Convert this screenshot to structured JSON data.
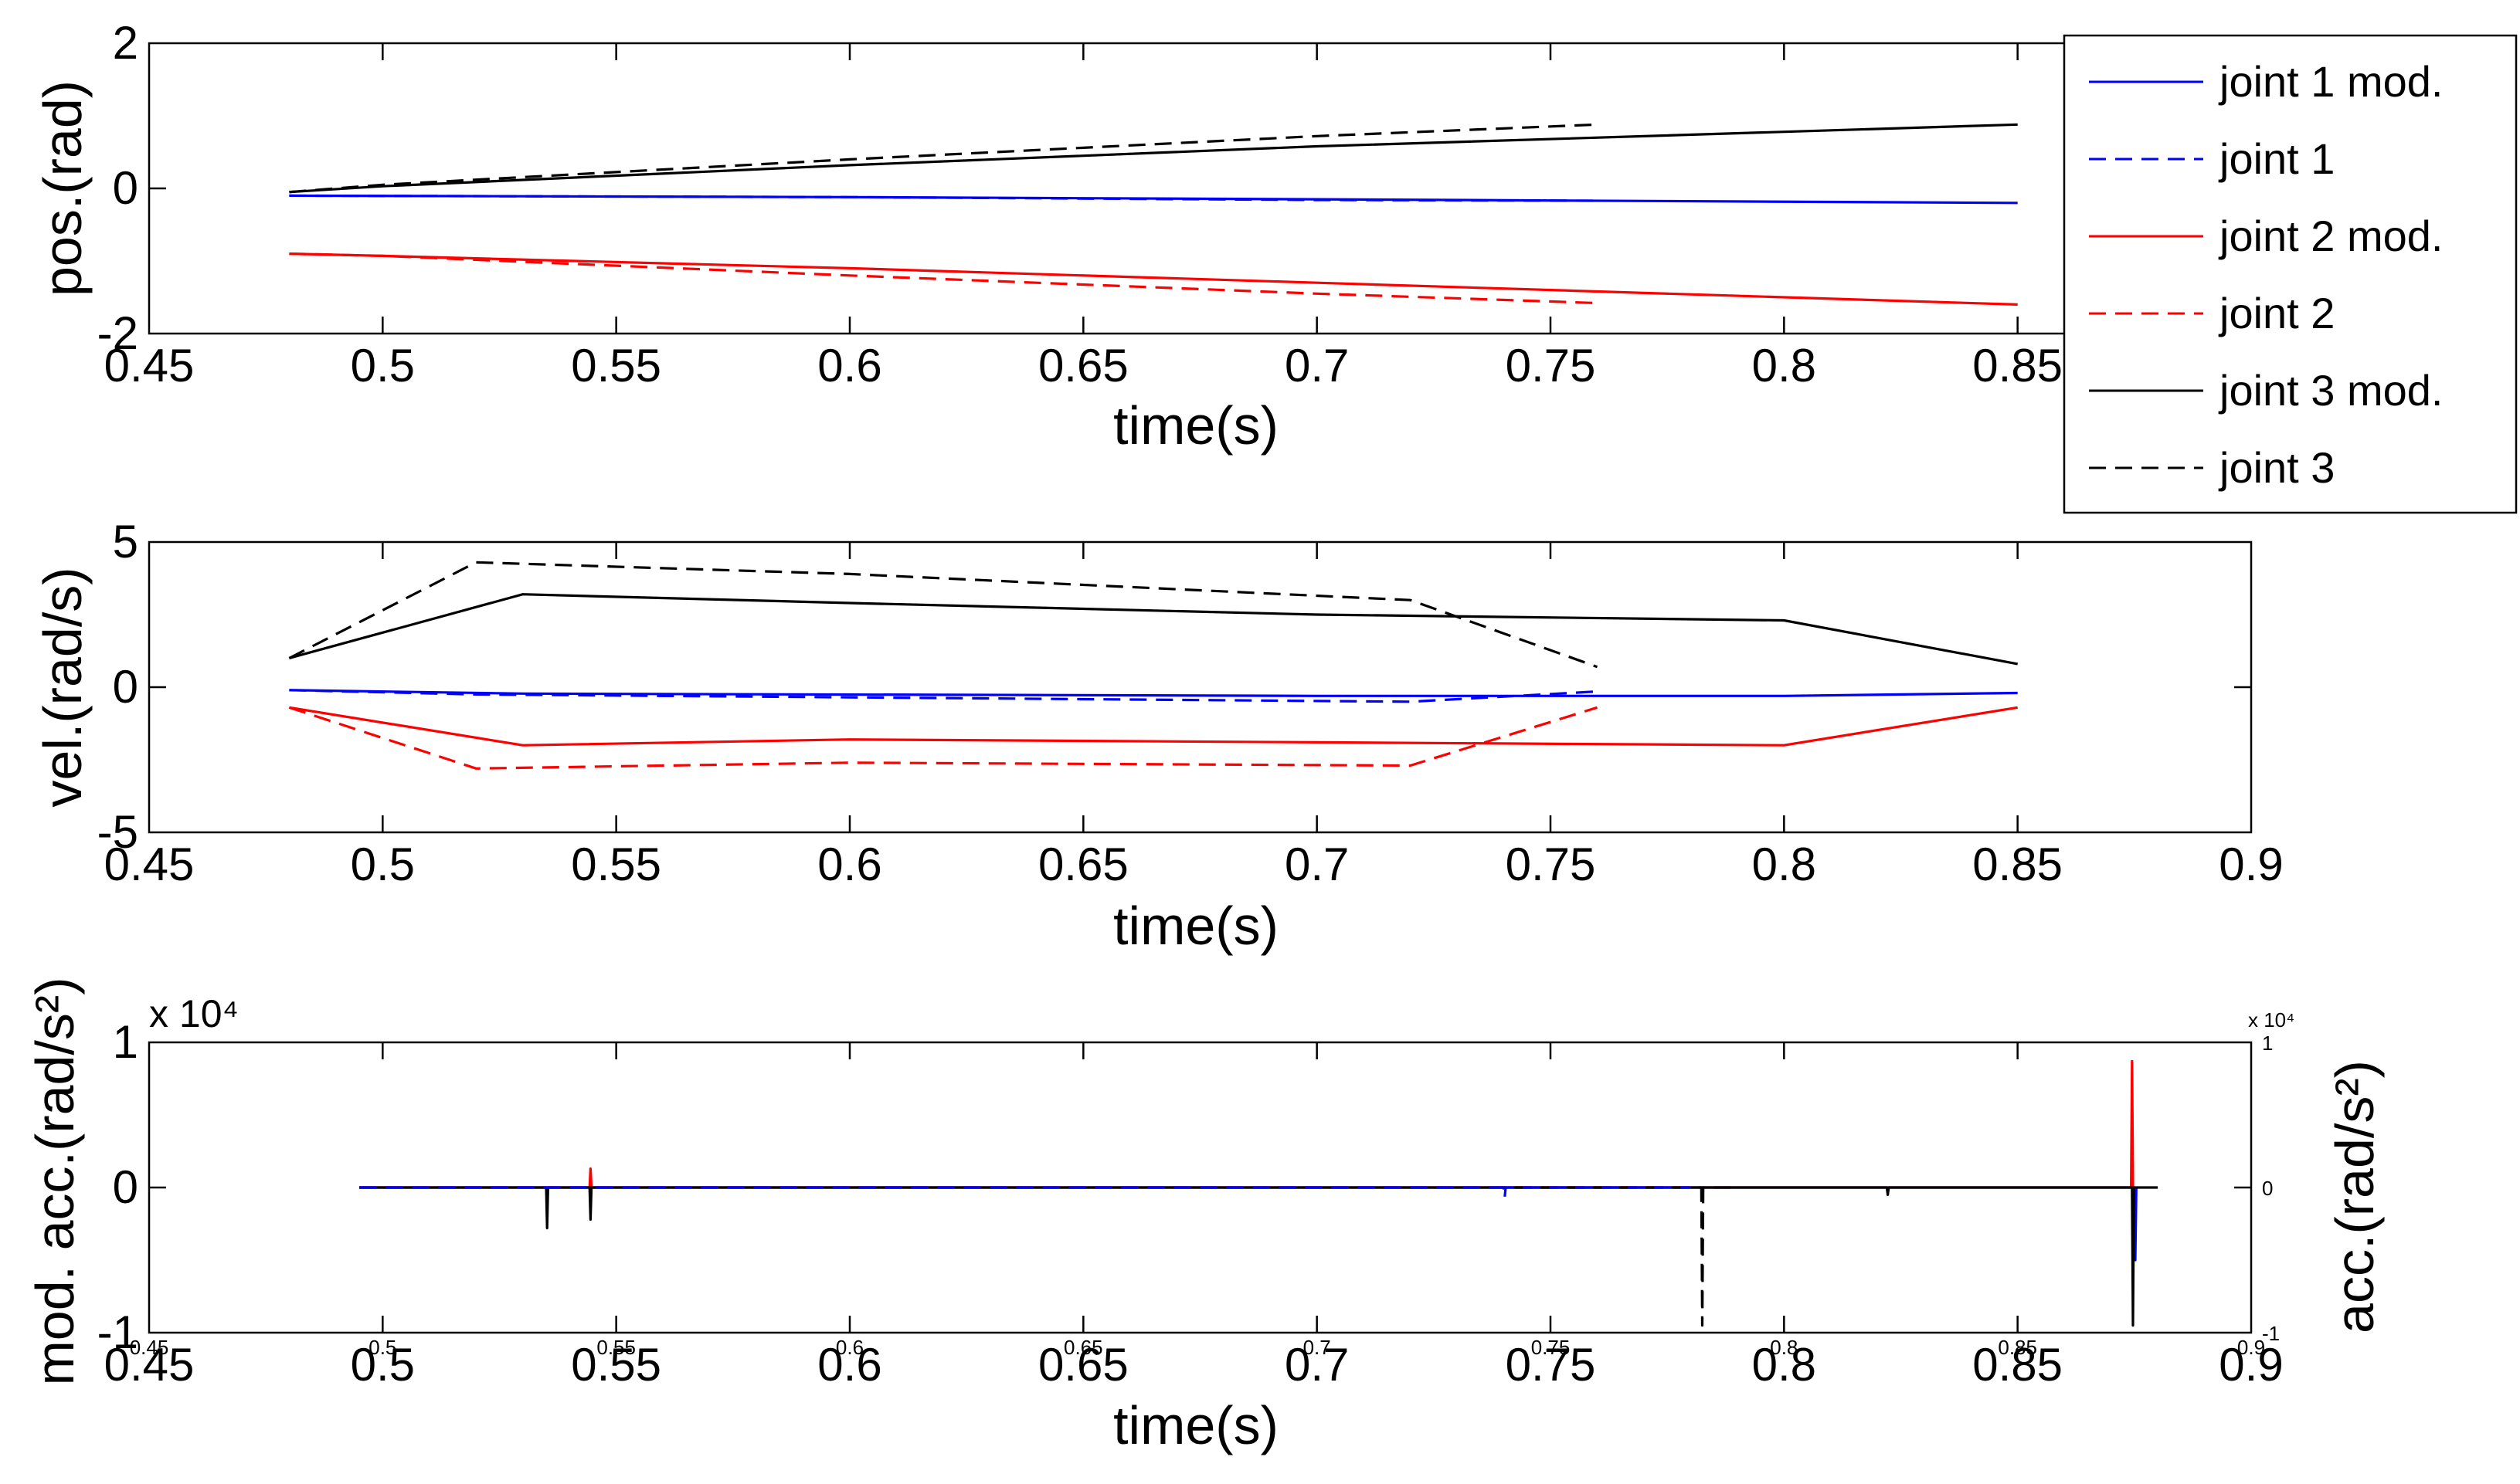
{
  "chart_data": [
    {
      "type": "line",
      "id": "position",
      "xlabel": "time(s)",
      "ylabel": "pos.(rad)",
      "xlim": [
        0.45,
        0.87
      ],
      "ylim": [
        -2,
        2
      ],
      "xticks": [
        0.45,
        0.5,
        0.55,
        0.6,
        0.65,
        0.7,
        0.75,
        0.8,
        0.85
      ],
      "xticklabels": [
        "0.45",
        "0.5",
        "0.55",
        "0.6",
        "0.65",
        "0.7",
        "0.75",
        "0.8",
        "0.85"
      ],
      "yticks": [
        -2,
        0,
        2
      ],
      "yticklabels": [
        "-2",
        "0",
        "2"
      ],
      "series": [
        {
          "name": "joint 1 mod.",
          "color": "#0000ff",
          "dash": false,
          "x": [
            0.48,
            0.6,
            0.7,
            0.85
          ],
          "y": [
            -0.1,
            -0.12,
            -0.15,
            -0.2
          ]
        },
        {
          "name": "joint 1",
          "color": "#0000ff",
          "dash": true,
          "x": [
            0.48,
            0.6,
            0.7,
            0.76
          ],
          "y": [
            -0.1,
            -0.12,
            -0.16,
            -0.17
          ]
        },
        {
          "name": "joint 2 mod.",
          "color": "#ff0000",
          "dash": false,
          "x": [
            0.48,
            0.5,
            0.6,
            0.7,
            0.85
          ],
          "y": [
            -0.9,
            -0.93,
            -1.1,
            -1.3,
            -1.6
          ]
        },
        {
          "name": "joint 2",
          "color": "#ff0000",
          "dash": true,
          "x": [
            0.48,
            0.5,
            0.6,
            0.7,
            0.76
          ],
          "y": [
            -0.9,
            -0.93,
            -1.2,
            -1.45,
            -1.58
          ]
        },
        {
          "name": "joint 3 mod.",
          "color": "#000000",
          "dash": false,
          "x": [
            0.48,
            0.5,
            0.6,
            0.7,
            0.85
          ],
          "y": [
            -0.05,
            0.03,
            0.32,
            0.58,
            0.88
          ]
        },
        {
          "name": "joint 3",
          "color": "#000000",
          "dash": true,
          "x": [
            0.48,
            0.5,
            0.6,
            0.7,
            0.76
          ],
          "y": [
            -0.05,
            0.05,
            0.4,
            0.72,
            0.88
          ]
        }
      ],
      "legend": {
        "placement": "right-outside",
        "entries": [
          "joint 1 mod.",
          "joint 1",
          "joint 2 mod.",
          "joint 2",
          "joint 3 mod.",
          "joint 3"
        ]
      }
    },
    {
      "type": "line",
      "id": "velocity",
      "xlabel": "time(s)",
      "ylabel": "vel.(rad/s)",
      "xlim": [
        0.45,
        0.9
      ],
      "ylim": [
        -5,
        5
      ],
      "xticks": [
        0.45,
        0.5,
        0.55,
        0.6,
        0.65,
        0.7,
        0.75,
        0.8,
        0.85,
        0.9
      ],
      "xticklabels": [
        "0.45",
        "0.5",
        "0.55",
        "0.6",
        "0.65",
        "0.7",
        "0.75",
        "0.8",
        "0.85",
        "0.9"
      ],
      "yticks": [
        -5,
        0,
        5
      ],
      "yticklabels": [
        "-5",
        "0",
        "5"
      ],
      "series": [
        {
          "name": "joint 1 mod.",
          "color": "#0000ff",
          "dash": false,
          "x": [
            0.48,
            0.53,
            0.7,
            0.8,
            0.85
          ],
          "y": [
            -0.1,
            -0.22,
            -0.3,
            -0.3,
            -0.2
          ]
        },
        {
          "name": "joint 1",
          "color": "#0000ff",
          "dash": true,
          "x": [
            0.48,
            0.52,
            0.72,
            0.76
          ],
          "y": [
            -0.1,
            -0.25,
            -0.5,
            -0.15
          ]
        },
        {
          "name": "joint 2 mod.",
          "color": "#ff0000",
          "dash": false,
          "x": [
            0.48,
            0.53,
            0.6,
            0.7,
            0.8,
            0.85
          ],
          "y": [
            -0.7,
            -2.0,
            -1.8,
            -1.9,
            -2.0,
            -0.7
          ]
        },
        {
          "name": "joint 2",
          "color": "#ff0000",
          "dash": true,
          "x": [
            0.48,
            0.52,
            0.6,
            0.72,
            0.76
          ],
          "y": [
            -0.7,
            -2.8,
            -2.6,
            -2.7,
            -0.7
          ]
        },
        {
          "name": "joint 3 mod.",
          "color": "#000000",
          "dash": false,
          "x": [
            0.48,
            0.53,
            0.6,
            0.7,
            0.8,
            0.85
          ],
          "y": [
            1.0,
            3.2,
            2.9,
            2.5,
            2.3,
            0.8
          ]
        },
        {
          "name": "joint 3",
          "color": "#000000",
          "dash": true,
          "x": [
            0.48,
            0.52,
            0.6,
            0.72,
            0.76
          ],
          "y": [
            1.0,
            4.3,
            3.9,
            3.0,
            0.7
          ]
        }
      ]
    },
    {
      "type": "line",
      "id": "acceleration",
      "xlabel": "time(s)",
      "ylabel": "mod. acc.(rad/s²)",
      "ylabel_right": "acc.(rad/s²)",
      "multiplier_left": "x 10⁴",
      "multiplier_right": "x 10⁴",
      "xlim": [
        0.45,
        0.9
      ],
      "ylim": [
        -1,
        1
      ],
      "ylim_right": [
        -1,
        1
      ],
      "xticks": [
        0.45,
        0.5,
        0.55,
        0.6,
        0.65,
        0.7,
        0.75,
        0.8,
        0.85,
        0.9
      ],
      "xticklabels": [
        "0.45",
        "0.5",
        "0.55",
        "0.6",
        "0.65",
        "0.7",
        "0.75",
        "0.8",
        "0.85",
        "0.9"
      ],
      "xticklabels_right_axis": [
        "0.45",
        "0.5",
        "0.55",
        "0.6",
        "0.65",
        "0.7",
        "0.75",
        "0.8",
        "0.85",
        "0.9"
      ],
      "yticks": [
        -1,
        0,
        1
      ],
      "yticklabels": [
        "-1",
        "0",
        "1"
      ],
      "yticklabels_right": [
        "-1",
        "0",
        "1"
      ],
      "series": [
        {
          "name": "joint 1 mod.",
          "color": "#0000ff",
          "dash": false,
          "x": [
            0.495,
            0.535,
            0.5352,
            0.5354,
            0.875,
            0.8752,
            0.8754
          ],
          "y": [
            0,
            0,
            -0.05,
            0,
            0,
            -0.5,
            0
          ]
        },
        {
          "name": "joint 2 mod.",
          "color": "#ff0000",
          "dash": false,
          "x": [
            0.495,
            0.5443,
            0.5445,
            0.5447,
            0.8743,
            0.8745,
            0.8747
          ],
          "y": [
            0,
            0,
            0.13,
            0,
            0,
            0.87,
            0
          ]
        },
        {
          "name": "joint 3 mod.",
          "color": "#000000",
          "dash": false,
          "x": [
            0.495,
            0.535,
            0.5352,
            0.5354,
            0.5443,
            0.5445,
            0.5447,
            0.822,
            0.8222,
            0.8224,
            0.8745,
            0.8747,
            0.8749,
            0.88
          ],
          "y": [
            0,
            0,
            -0.28,
            0,
            0,
            -0.22,
            0,
            0,
            -0.05,
            0,
            0,
            -0.95,
            0,
            0
          ]
        },
        {
          "name": "joint 2",
          "color": "#ff0000",
          "dash": true,
          "x": [
            0.495,
            0.78
          ],
          "y": [
            0,
            0
          ]
        },
        {
          "name": "joint 3",
          "color": "#000000",
          "dash": true,
          "x": [
            0.495,
            0.7823,
            0.7825,
            0.7827,
            0.79
          ],
          "y": [
            0,
            0,
            -0.95,
            0,
            0
          ]
        },
        {
          "name": "joint 1",
          "color": "#0000ff",
          "dash": true,
          "x": [
            0.495,
            0.74,
            0.7402,
            0.7404,
            0.78
          ],
          "y": [
            0,
            0,
            -0.07,
            0,
            0
          ]
        }
      ]
    }
  ]
}
